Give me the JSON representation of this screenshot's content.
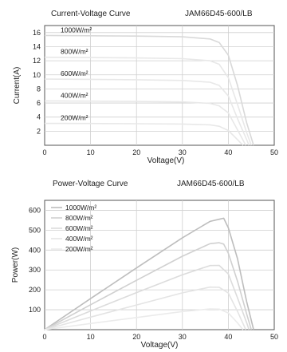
{
  "chart_data": [
    {
      "type": "line",
      "title": "Current-Voltage Curve",
      "model": "JAM66D45-600/LB",
      "xlabel": "Voltage(V)",
      "ylabel": "Current(A)",
      "xlim": [
        0,
        50
      ],
      "ylim": [
        0,
        17
      ],
      "xticks": [
        0,
        10,
        20,
        30,
        40,
        50
      ],
      "yticks": [
        2,
        4,
        6,
        8,
        10,
        12,
        14,
        16
      ],
      "grid": true,
      "labels_placement": "left, inline",
      "series": [
        {
          "name": "1000W/m²",
          "color": "#d9d9d9",
          "points": [
            [
              0,
              15.6
            ],
            [
              10,
              15.55
            ],
            [
              20,
              15.5
            ],
            [
              30,
              15.4
            ],
            [
              36,
              15.1
            ],
            [
              38,
              14.6
            ],
            [
              40,
              12.8
            ],
            [
              42,
              8.5
            ],
            [
              44,
              3.2
            ],
            [
              45.5,
              0
            ]
          ]
        },
        {
          "name": "800W/m²",
          "color": "#e8e8e8",
          "points": [
            [
              0,
              12.5
            ],
            [
              10,
              12.45
            ],
            [
              20,
              12.4
            ],
            [
              30,
              12.3
            ],
            [
              36,
              12.0
            ],
            [
              38,
              11.5
            ],
            [
              40,
              9.6
            ],
            [
              42,
              5.8
            ],
            [
              44,
              1.8
            ],
            [
              45.0,
              0
            ]
          ]
        },
        {
          "name": "600W/m²",
          "color": "#e8e8e8",
          "points": [
            [
              0,
              9.4
            ],
            [
              10,
              9.36
            ],
            [
              20,
              9.3
            ],
            [
              30,
              9.2
            ],
            [
              36,
              8.95
            ],
            [
              38,
              8.5
            ],
            [
              40,
              7.0
            ],
            [
              42,
              3.8
            ],
            [
              44,
              0.8
            ],
            [
              44.5,
              0
            ]
          ]
        },
        {
          "name": "400W/m²",
          "color": "#e8e8e8",
          "points": [
            [
              0,
              6.3
            ],
            [
              10,
              6.27
            ],
            [
              20,
              6.22
            ],
            [
              30,
              6.15
            ],
            [
              36,
              5.95
            ],
            [
              38,
              5.6
            ],
            [
              40,
              4.6
            ],
            [
              42,
              2.2
            ],
            [
              43.8,
              0
            ]
          ]
        },
        {
          "name": "200W/m²",
          "color": "#e8e8e8",
          "points": [
            [
              0,
              3.1
            ],
            [
              10,
              3.09
            ],
            [
              20,
              3.06
            ],
            [
              30,
              3.02
            ],
            [
              36,
              2.9
            ],
            [
              38,
              2.7
            ],
            [
              40,
              2.1
            ],
            [
              42,
              0.8
            ],
            [
              43.2,
              0
            ]
          ]
        }
      ]
    },
    {
      "type": "line",
      "title": "Power-Voltage Curve",
      "model": "JAM66D45-600/LB",
      "xlabel": "Voltage(V)",
      "ylabel": "Power(W)",
      "xlim": [
        0,
        50
      ],
      "ylim": [
        0,
        650
      ],
      "xticks": [
        0,
        10,
        20,
        30,
        40,
        50
      ],
      "yticks": [
        100,
        200,
        300,
        400,
        500,
        600
      ],
      "grid": true,
      "legend_placement": "top-left",
      "series": [
        {
          "name": "1000W/m²",
          "color": "#bdbdbd",
          "points": [
            [
              0,
              0
            ],
            [
              10,
              156
            ],
            [
              20,
              310
            ],
            [
              30,
              462
            ],
            [
              36,
              544
            ],
            [
              38,
              555
            ],
            [
              39,
              560
            ],
            [
              40,
              512
            ],
            [
              42,
              357
            ],
            [
              44,
              141
            ],
            [
              45.5,
              0
            ]
          ]
        },
        {
          "name": "800W/m²",
          "color": "#d0d0d0",
          "points": [
            [
              0,
              0
            ],
            [
              10,
              125
            ],
            [
              20,
              248
            ],
            [
              30,
              369
            ],
            [
              36,
              432
            ],
            [
              38,
              437
            ],
            [
              39,
              430
            ],
            [
              40,
              384
            ],
            [
              42,
              244
            ],
            [
              44,
              79
            ],
            [
              45.0,
              0
            ]
          ]
        },
        {
          "name": "600W/m²",
          "color": "#dcdcdc",
          "points": [
            [
              0,
              0
            ],
            [
              10,
              94
            ],
            [
              20,
              186
            ],
            [
              30,
              276
            ],
            [
              36,
              322
            ],
            [
              38,
              323
            ],
            [
              40,
              280
            ],
            [
              42,
              160
            ],
            [
              44,
              35
            ],
            [
              44.5,
              0
            ]
          ]
        },
        {
          "name": "400W/m²",
          "color": "#e4e4e4",
          "points": [
            [
              0,
              0
            ],
            [
              10,
              63
            ],
            [
              20,
              124
            ],
            [
              30,
              185
            ],
            [
              36,
              214
            ],
            [
              38,
              213
            ],
            [
              40,
              184
            ],
            [
              42,
              92
            ],
            [
              43.8,
              0
            ]
          ]
        },
        {
          "name": "200W/m²",
          "color": "#ebebeb",
          "points": [
            [
              0,
              0
            ],
            [
              10,
              31
            ],
            [
              20,
              61
            ],
            [
              30,
              91
            ],
            [
              36,
              104
            ],
            [
              38,
              103
            ],
            [
              40,
              84
            ],
            [
              42,
              34
            ],
            [
              43.2,
              0
            ]
          ]
        }
      ]
    }
  ]
}
